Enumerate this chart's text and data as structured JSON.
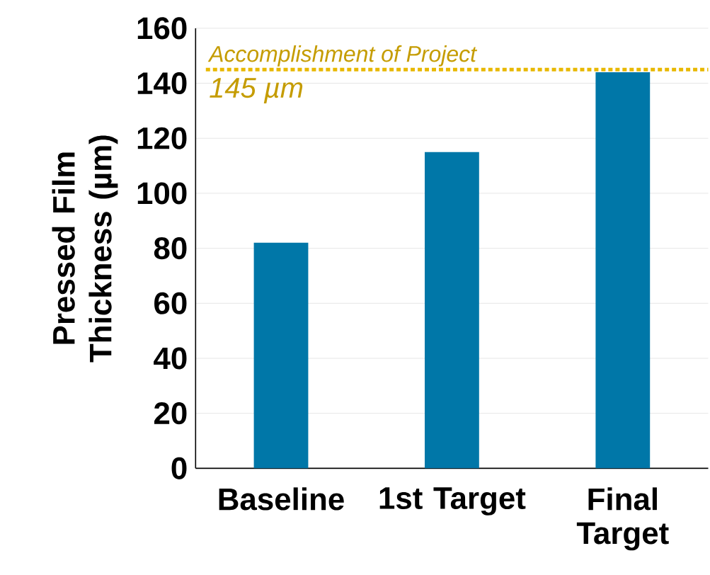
{
  "chart_data": {
    "type": "bar",
    "ylabel": "Pressed Film Thickness (µm)",
    "categories": [
      "Baseline",
      "1st Target",
      "Final Target"
    ],
    "values": [
      82,
      115,
      144
    ],
    "color": "#0077a8",
    "ylim": [
      0,
      160
    ],
    "yticks": [
      0,
      20,
      40,
      60,
      80,
      100,
      120,
      140,
      160
    ],
    "grid": "y",
    "ref_lines": [
      {
        "axis": "y",
        "value": 145,
        "label": "Accomplishment of Project",
        "color": "#e8b800",
        "line_style": "dotted"
      }
    ],
    "annotations": [
      "145 µm"
    ]
  }
}
